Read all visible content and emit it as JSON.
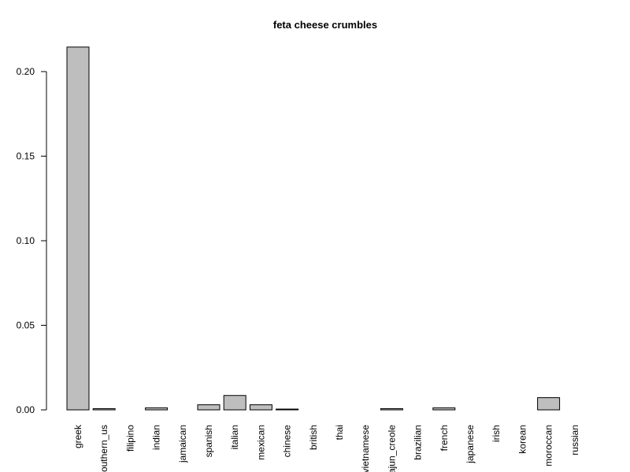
{
  "chart_data": {
    "type": "bar",
    "title": "feta cheese crumbles",
    "xlabel": "",
    "ylabel": "",
    "ylim": [
      0,
      0.2
    ],
    "yticks": [
      "0.00",
      "0.05",
      "0.10",
      "0.15",
      "0.20"
    ],
    "categories": [
      "greek",
      "southern_us",
      "filipino",
      "indian",
      "jamaican",
      "spanish",
      "italian",
      "mexican",
      "chinese",
      "british",
      "thai",
      "vietnamese",
      "cajun_creole",
      "brazilian",
      "french",
      "japanese",
      "irish",
      "korean",
      "moroccan",
      "russian"
    ],
    "values": [
      0.2145,
      0.0007,
      0.0,
      0.0012,
      0.0,
      0.003,
      0.0085,
      0.003,
      0.0003,
      0.0,
      0.0,
      0.0,
      0.0007,
      0.0,
      0.0012,
      0.0,
      0.0,
      0.0,
      0.0072,
      0.0
    ],
    "bar_color": "#bebebe",
    "grid": false,
    "legend": "none"
  }
}
